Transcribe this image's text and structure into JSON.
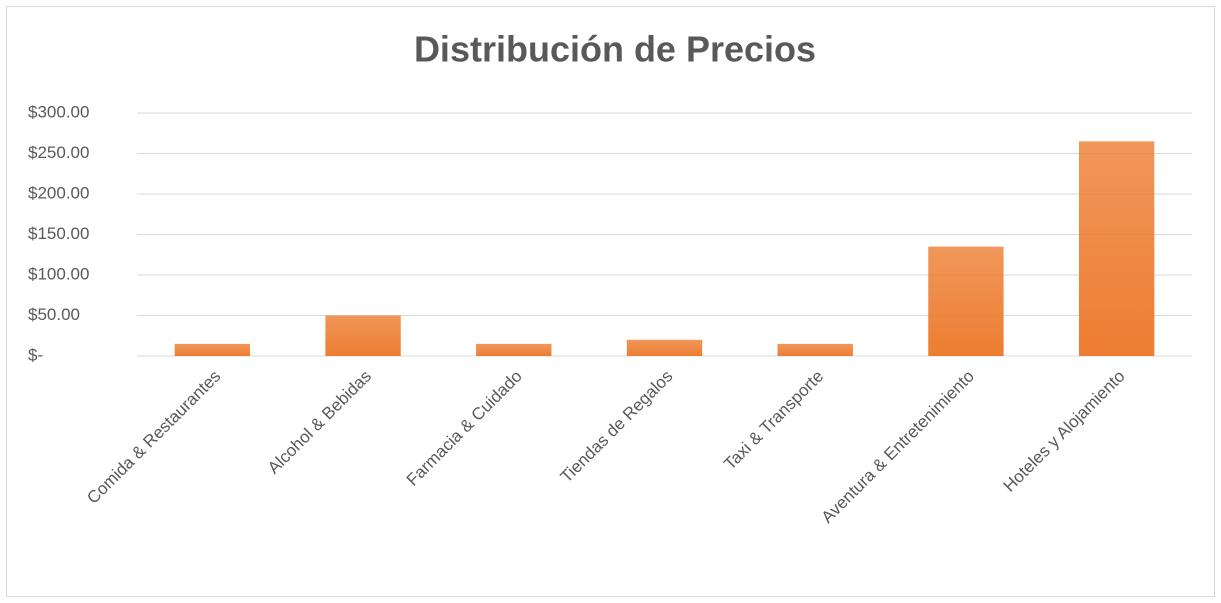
{
  "chart_data": {
    "type": "bar",
    "title": "Distribución de Precios",
    "categories": [
      "Comida & Restaurantes",
      "Alcohol & Bebidas",
      "Farmacia & Cuidado",
      "Tiendas de Regalos",
      "Taxi & Transporte",
      "Aventura & Entretenimiento",
      "Hoteles y Alojamiento"
    ],
    "values": [
      15,
      50,
      15,
      20,
      15,
      135,
      265
    ],
    "color": "#ed7d31",
    "ylim": [
      0,
      300
    ],
    "yticks": [
      {
        "value": 0,
        "label": "$-"
      },
      {
        "value": 50,
        "label": "$50.00"
      },
      {
        "value": 100,
        "label": "$100.00"
      },
      {
        "value": 150,
        "label": "$150.00"
      },
      {
        "value": 200,
        "label": "$200.00"
      },
      {
        "value": 250,
        "label": "$250.00"
      },
      {
        "value": 300,
        "label": "$300.00"
      }
    ],
    "grid": true
  }
}
